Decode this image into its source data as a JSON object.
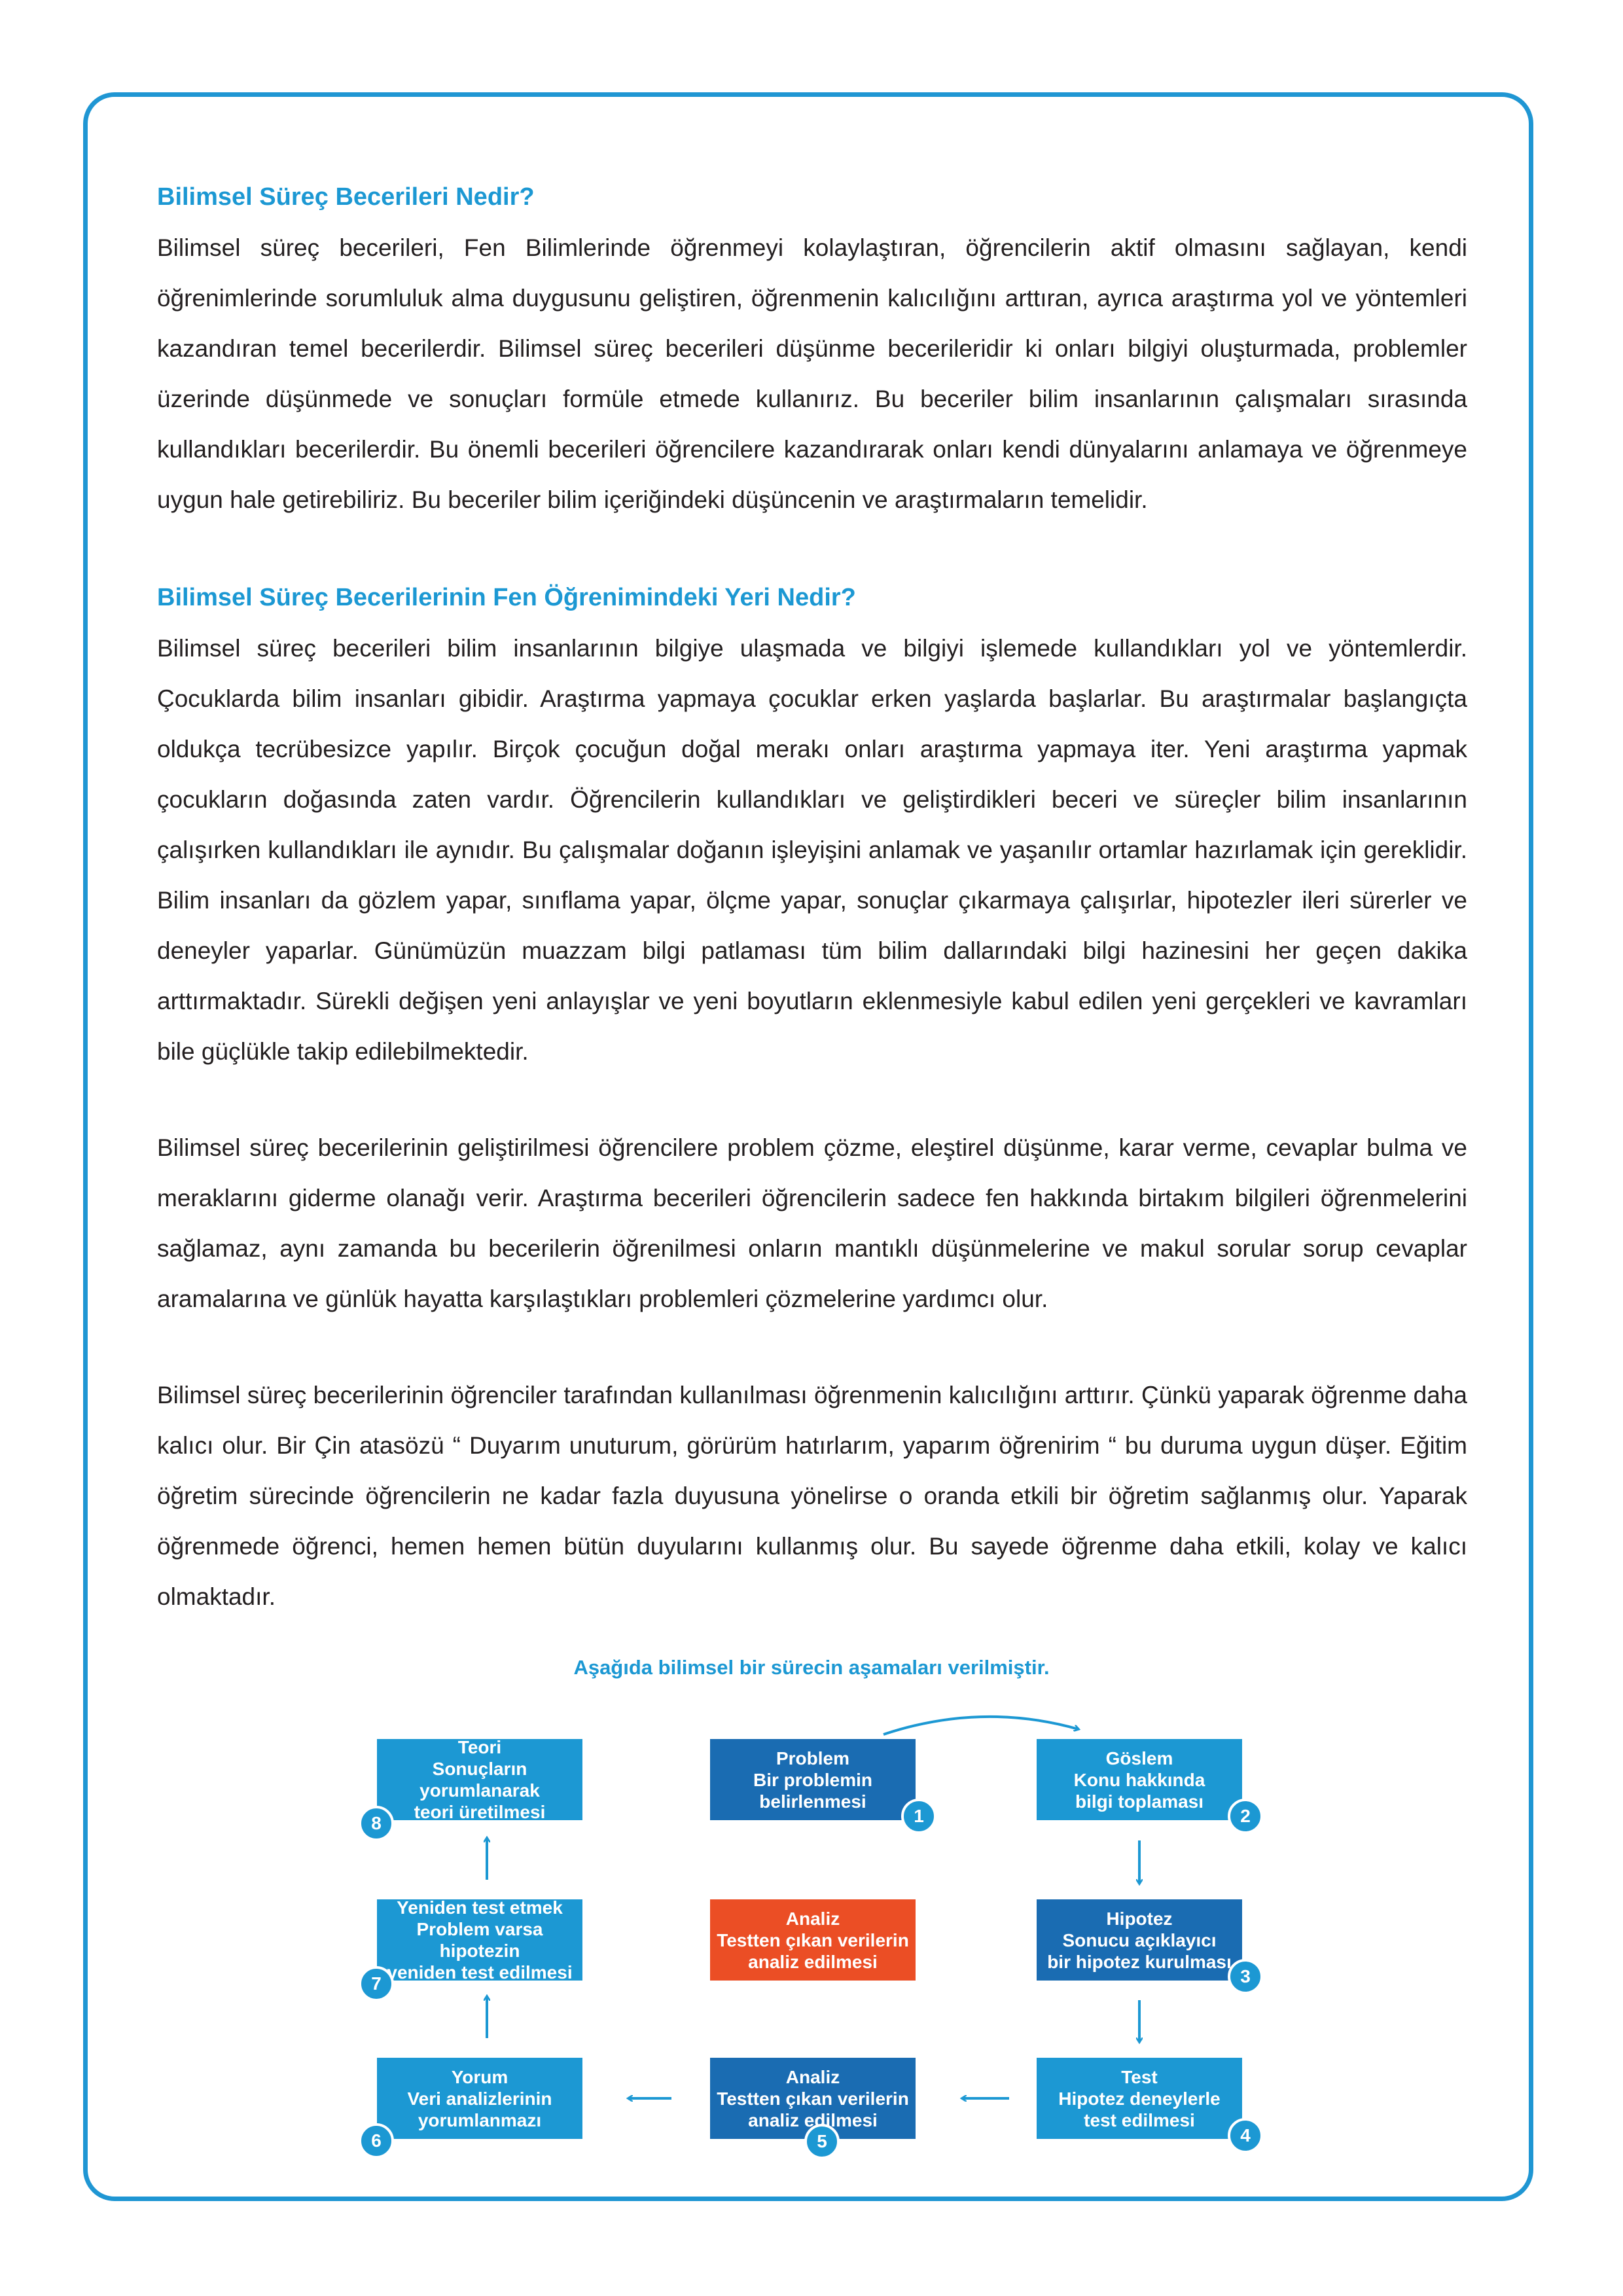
{
  "sections": [
    {
      "heading": "Bilimsel Süreç Becerileri Nedir?",
      "paragraphs": [
        "Bilimsel süreç becerileri, Fen Bilimlerinde öğrenmeyi kolaylaştıran, öğrencilerin aktif olmasını sağlayan, kendi öğrenimlerinde sorumluluk alma duygusunu geliştiren, öğrenmenin kalıcılığını arttıran, ayrıca araştırma yol ve yöntemleri kazandıran temel becerilerdir. Bilimsel süreç becerileri düşünme becerileridir ki onları bilgiyi oluşturmada, problemler üzerinde düşünmede ve sonuçları formüle etmede kullanırız. Bu beceriler bilim insanlarının çalışmaları sırasında kullandıkları becerilerdir. Bu önemli becerileri öğrencilere kazandırarak onları kendi dünyalarını anlamaya ve öğrenmeye uygun hale getirebiliriz. Bu beceriler bilim içeriğindeki düşüncenin ve araştırmaların temelidir."
      ]
    },
    {
      "heading": "Bilimsel Süreç Becerilerinin Fen Öğrenimindeki Yeri Nedir?",
      "paragraphs": [
        "Bilimsel süreç becerileri bilim insanlarının bilgiye ulaşmada ve bilgiyi işlemede kullandıkları yol ve yöntemlerdir. Çocuklarda bilim insanları gibidir. Araştırma yapmaya çocuklar erken yaşlarda başlarlar. Bu araştırmalar başlangıçta oldukça tecrübesizce yapılır. Birçok çocuğun doğal merakı onları araştırma yapmaya iter. Yeni araştırma yapmak çocukların doğasında zaten vardır. Öğrencilerin kullandıkları ve geliştirdikleri beceri ve süreçler bilim insanlarının çalışırken kullandıkları ile aynıdır. Bu çalışmalar doğanın işleyişini anlamak ve yaşanılır ortamlar hazırlamak için gereklidir. Bilim insanları da gözlem yapar, sınıflama yapar, ölçme yapar, sonuçlar çıkarmaya çalışırlar, hipotezler ileri sürerler ve deneyler yaparlar. Günümüzün muazzam bilgi patlaması tüm bilim dallarındaki bilgi hazinesini her geçen dakika arttırmaktadır. Sürekli değişen yeni anlayışlar ve yeni boyutların eklenmesiyle kabul edilen yeni gerçekleri ve kavramları bile güçlükle takip edilebilmektedir.",
        "Bilimsel süreç becerilerinin geliştirilmesi öğrencilere problem çözme, eleştirel düşünme, karar verme, cevaplar bulma ve meraklarını giderme olanağı verir. Araştırma becerileri öğrencilerin sadece fen hakkında birtakım bilgileri öğrenmelerini sağlamaz, aynı zamanda bu becerilerin öğrenilmesi onların mantıklı düşünmelerine ve makul sorular sorup cevaplar aramalarına ve günlük hayatta karşılaştıkları problemleri çözmelerine yardımcı olur.",
        "Bilimsel süreç becerilerinin öğrenciler tarafından kullanılması öğrenmenin kalıcılığını arttırır. Çünkü yaparak öğrenme daha kalıcı olur. Bir Çin atasözü “ Duyarım unuturum, görürüm hatırlarım, yaparım öğrenirim “ bu duruma uygun düşer. Eğitim öğretim sürecinde öğrencilerin ne kadar fazla duyusuna yönelirse o oranda etkili bir öğretim sağlanmış olur. Yaparak öğrenmede öğrenci, hemen hemen bütün duyularını kullanmış olur. Bu sayede öğrenme daha etkili, kolay ve kalıcı olmaktadır."
      ]
    }
  ],
  "diagram": {
    "caption": "Aşağıda bilimsel bir sürecin aşamaları verilmiştir.",
    "colors": {
      "light": "#1c98d3",
      "dark": "#1a6cb2",
      "orange": "#eb4e25"
    },
    "steps": {
      "s1": {
        "number": "1",
        "lines": [
          "Problem",
          "Bir problemin",
          "belirlenmesi"
        ]
      },
      "s2": {
        "number": "2",
        "lines": [
          "Göslem",
          "Konu hakkında",
          "bilgi toplaması"
        ]
      },
      "s3": {
        "number": "3",
        "lines": [
          "Hipotez",
          "Sonucu açıklayıcı",
          "bir hipotez kurulması"
        ]
      },
      "s4": {
        "number": "4",
        "lines": [
          "Test",
          "Hipotez deneylerle",
          "test edilmesi"
        ]
      },
      "s5": {
        "number": "5",
        "lines": [
          "Analiz",
          "Testten çıkan verilerin",
          "analiz edilmesi"
        ]
      },
      "s6": {
        "number": "6",
        "lines": [
          "Yorum",
          "Veri analizlerinin",
          "yorumlanmazı"
        ]
      },
      "s7": {
        "number": "7",
        "lines": [
          "Yeniden test etmek",
          "Problem varsa hipotezin",
          "yeniden test edilmesi"
        ]
      },
      "s8": {
        "number": "8",
        "lines": [
          "Teori",
          "Sonuçların yorumlanarak",
          "teori üretilmesi"
        ]
      },
      "center": {
        "lines": [
          "Analiz",
          "Testten çıkan verilerin",
          "analiz edilmesi"
        ]
      }
    }
  }
}
